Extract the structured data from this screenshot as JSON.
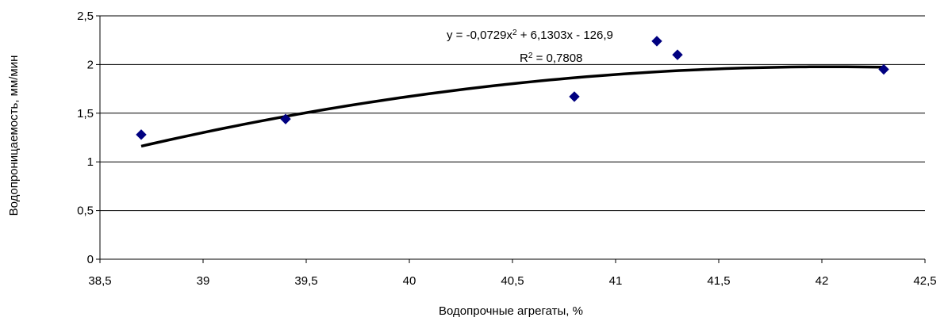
{
  "chart_data": {
    "type": "scatter",
    "xlabel": "Водопрочные агрегаты, %",
    "ylabel": "Водопроницаемость, мм/мин",
    "xlim": [
      38.5,
      42.5
    ],
    "ylim": [
      0,
      2.5
    ],
    "x_ticks": [
      "38,5",
      "39",
      "39,5",
      "40",
      "40,5",
      "41",
      "41,5",
      "42",
      "42,5"
    ],
    "y_ticks": [
      "0",
      "0,5",
      "1",
      "1,5",
      "2",
      "2,5"
    ],
    "x_tick_values": [
      38.5,
      39,
      39.5,
      40,
      40.5,
      41,
      41.5,
      42,
      42.5
    ],
    "y_tick_values": [
      0,
      0.5,
      1,
      1.5,
      2,
      2.5
    ],
    "grid": "horizontal",
    "marker_color": "#000080",
    "trend_color": "#000000",
    "points": [
      {
        "x": 38.7,
        "y": 1.28
      },
      {
        "x": 39.4,
        "y": 1.44
      },
      {
        "x": 40.8,
        "y": 1.67
      },
      {
        "x": 41.2,
        "y": 2.24
      },
      {
        "x": 41.3,
        "y": 2.1
      },
      {
        "x": 42.3,
        "y": 1.95
      }
    ],
    "trendline": {
      "type": "polynomial",
      "coefficients": [
        -126.9,
        6.1303,
        -0.0729
      ],
      "x_range": [
        38.7,
        42.3
      ],
      "equation_lhs": "y = -0,0729x",
      "equation_sup": "2",
      "equation_rhs": " + 6,1303x - 126,9",
      "r2_lhs": "R",
      "r2_sup": "2",
      "r2_rhs": " = 0,7808"
    }
  }
}
